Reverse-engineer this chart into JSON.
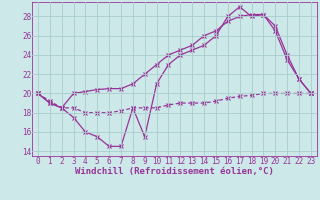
{
  "x": [
    0,
    1,
    2,
    3,
    4,
    5,
    6,
    7,
    8,
    9,
    10,
    11,
    12,
    13,
    14,
    15,
    16,
    17,
    18,
    19,
    20,
    21,
    22,
    23
  ],
  "line1": [
    20,
    19,
    18.5,
    17.5,
    16,
    15.5,
    14.5,
    14.5,
    18.5,
    15.5,
    21,
    23,
    24,
    24.5,
    25,
    26,
    28,
    29,
    28,
    28.2,
    26.5,
    23.5,
    21.5,
    20
  ],
  "line2": [
    20,
    19,
    18.5,
    20,
    20.2,
    20.4,
    20.5,
    20.5,
    21,
    22,
    23,
    24,
    24.5,
    25,
    26,
    26.5,
    27.5,
    28,
    28.2,
    28.2,
    27,
    24,
    21.5,
    20
  ],
  "line3": [
    20,
    19.2,
    18.5,
    18.5,
    18,
    18,
    18,
    18.2,
    18.5,
    18.5,
    18.5,
    18.8,
    19,
    19,
    19,
    19.2,
    19.5,
    19.7,
    19.8,
    20,
    20,
    20,
    20,
    20
  ],
  "line_color": "#993399",
  "background_color": "#cce8e8",
  "grid_color": "#aacccc",
  "xlabel": "Windchill (Refroidissement éolien,°C)",
  "ylim": [
    13.5,
    29.5
  ],
  "xlim": [
    -0.5,
    23.5
  ],
  "yticks": [
    14,
    16,
    18,
    20,
    22,
    24,
    26,
    28
  ],
  "xticks": [
    0,
    1,
    2,
    3,
    4,
    5,
    6,
    7,
    8,
    9,
    10,
    11,
    12,
    13,
    14,
    15,
    16,
    17,
    18,
    19,
    20,
    21,
    22,
    23
  ],
  "tick_fontsize": 5.5,
  "xlabel_fontsize": 6.5
}
